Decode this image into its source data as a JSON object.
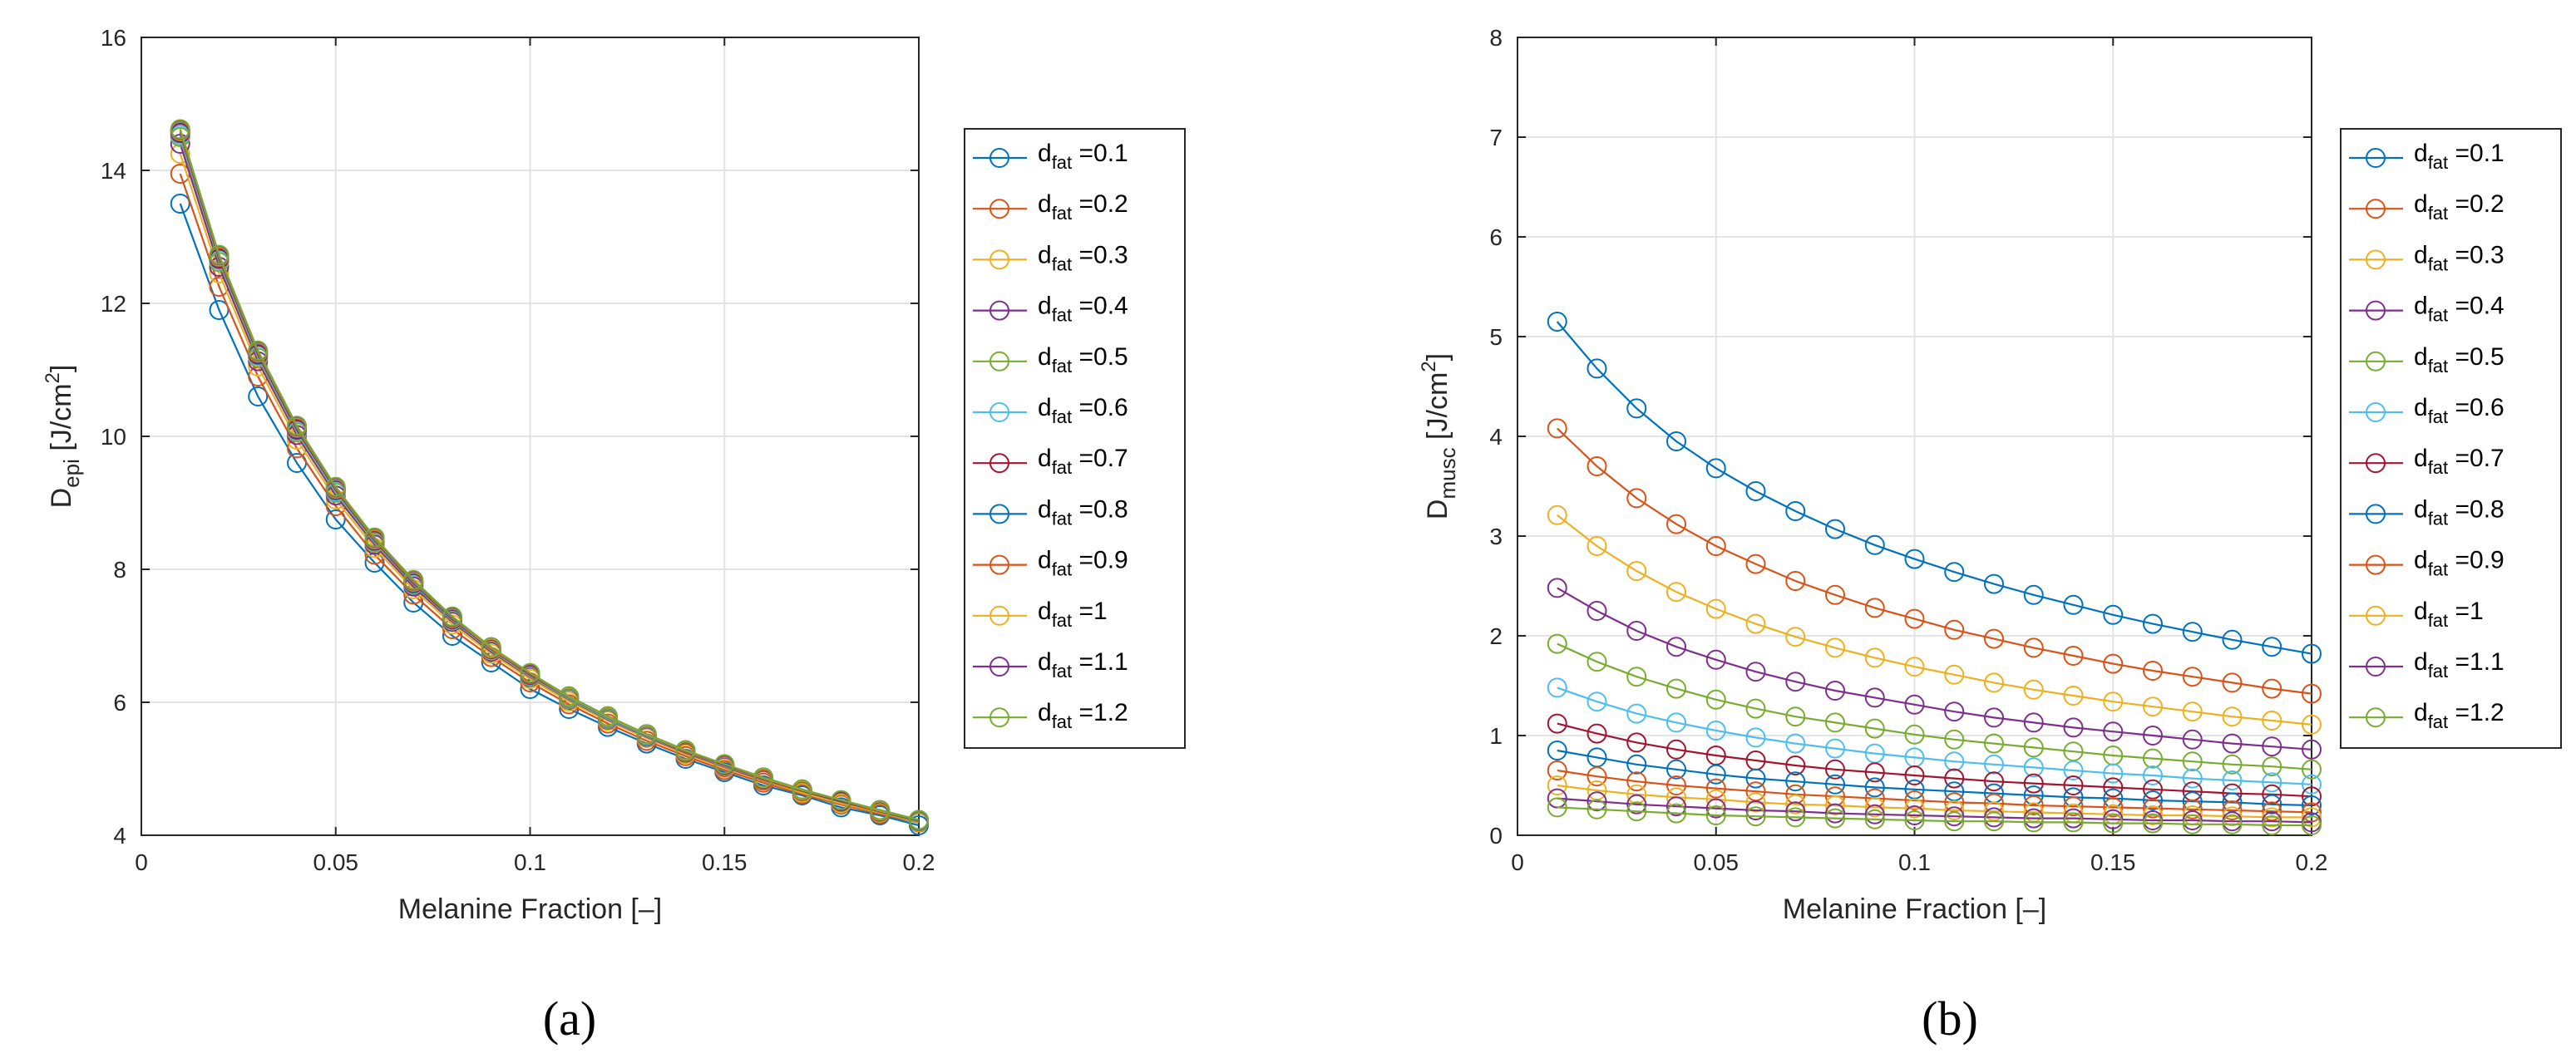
{
  "chart_data": [
    {
      "type": "line",
      "panel_label": "(a)",
      "xlabel": "Melanine Fraction [–]",
      "ylabel": "D",
      "ylabel_sub": "epi",
      "ylabel_unit": " [J/cm",
      "ylabel_sup": "2",
      "ylabel_close": "]",
      "xlim": [
        0,
        0.2
      ],
      "ylim": [
        4,
        16
      ],
      "xticks": [
        0,
        0.05,
        0.1,
        0.15,
        0.2
      ],
      "xtick_labels": [
        "0",
        "0.05",
        "0.1",
        "0.15",
        "0.2"
      ],
      "yticks": [
        4,
        6,
        8,
        10,
        12,
        14,
        16
      ],
      "ytick_labels": [
        "4",
        "6",
        "8",
        "10",
        "12",
        "14",
        "16"
      ],
      "grid": true,
      "legend_position": "right-outside",
      "x": [
        0.01,
        0.02,
        0.03,
        0.04,
        0.05,
        0.06,
        0.07,
        0.08,
        0.09,
        0.1,
        0.11,
        0.12,
        0.13,
        0.14,
        0.15,
        0.16,
        0.17,
        0.18,
        0.19,
        0.2
      ],
      "series": [
        {
          "name": "d",
          "sub": "fat",
          "suffix": " =0.1",
          "color": "#0072BD",
          "values": [
            13.5,
            11.9,
            10.6,
            9.6,
            8.75,
            8.1,
            7.5,
            7.0,
            6.6,
            6.2,
            5.9,
            5.63,
            5.38,
            5.15,
            4.95,
            4.75,
            4.6,
            4.42,
            4.3,
            4.15
          ]
        },
        {
          "name": "d",
          "sub": "fat",
          "suffix": " =0.2",
          "color": "#D95319",
          "values": [
            13.95,
            12.25,
            10.9,
            9.82,
            8.95,
            8.22,
            7.62,
            7.1,
            6.68,
            6.3,
            5.97,
            5.68,
            5.42,
            5.19,
            4.98,
            4.79,
            4.62,
            4.46,
            4.32,
            4.19
          ]
        },
        {
          "name": "d",
          "sub": "fat",
          "suffix": " =0.3",
          "color": "#EDB120",
          "values": [
            14.25,
            12.45,
            11.05,
            9.95,
            9.05,
            8.32,
            7.7,
            7.17,
            6.73,
            6.35,
            6.01,
            5.72,
            5.46,
            5.22,
            5.01,
            4.82,
            4.64,
            4.48,
            4.34,
            4.2
          ]
        },
        {
          "name": "d",
          "sub": "fat",
          "suffix": " =0.4",
          "color": "#7E2F8E",
          "values": [
            14.4,
            12.55,
            11.13,
            10.02,
            9.11,
            8.37,
            7.74,
            7.21,
            6.76,
            6.38,
            6.04,
            5.74,
            5.48,
            5.24,
            5.03,
            4.83,
            4.66,
            4.5,
            4.35,
            4.21
          ]
        },
        {
          "name": "d",
          "sub": "fat",
          "suffix": " =0.5",
          "color": "#77AC30",
          "values": [
            14.5,
            12.62,
            11.18,
            10.06,
            9.15,
            8.4,
            7.77,
            7.23,
            6.78,
            6.39,
            6.05,
            5.75,
            5.49,
            5.25,
            5.04,
            4.84,
            4.66,
            4.5,
            4.35,
            4.21
          ]
        },
        {
          "name": "d",
          "sub": "fat",
          "suffix": " =0.6",
          "color": "#4DBEEE",
          "values": [
            14.53,
            12.65,
            11.21,
            10.08,
            9.17,
            8.42,
            7.78,
            7.24,
            6.79,
            6.4,
            6.06,
            5.76,
            5.49,
            5.26,
            5.04,
            4.85,
            4.67,
            4.51,
            4.36,
            4.22
          ]
        },
        {
          "name": "d",
          "sub": "fat",
          "suffix": " =0.7",
          "color": "#A2142F",
          "values": [
            14.56,
            12.67,
            11.23,
            10.1,
            9.19,
            8.43,
            7.79,
            7.25,
            6.8,
            6.41,
            6.07,
            5.77,
            5.5,
            5.26,
            5.05,
            4.85,
            4.67,
            4.51,
            4.36,
            4.22
          ]
        },
        {
          "name": "d",
          "sub": "fat",
          "suffix": " =0.8",
          "color": "#0072BD",
          "values": [
            14.58,
            12.69,
            11.25,
            10.12,
            9.2,
            8.44,
            7.8,
            7.26,
            6.81,
            6.42,
            6.07,
            5.77,
            5.5,
            5.27,
            5.05,
            4.86,
            4.68,
            4.52,
            4.37,
            4.22
          ]
        },
        {
          "name": "d",
          "sub": "fat",
          "suffix": " =0.9",
          "color": "#D95319",
          "values": [
            14.59,
            12.7,
            11.26,
            10.13,
            9.21,
            8.45,
            7.81,
            7.27,
            6.81,
            6.42,
            6.08,
            5.78,
            5.51,
            5.27,
            5.05,
            4.86,
            4.68,
            4.52,
            4.37,
            4.23
          ]
        },
        {
          "name": "d",
          "sub": "fat",
          "suffix": " =1",
          "color": "#EDB120",
          "values": [
            14.6,
            12.71,
            11.27,
            10.14,
            9.22,
            8.46,
            7.82,
            7.27,
            6.82,
            6.43,
            6.08,
            5.78,
            5.51,
            5.27,
            5.06,
            4.86,
            4.68,
            4.52,
            4.37,
            4.23
          ]
        },
        {
          "name": "d",
          "sub": "fat",
          "suffix": " =1.1",
          "color": "#7E2F8E",
          "values": [
            14.61,
            12.72,
            11.28,
            10.15,
            9.23,
            8.47,
            7.83,
            7.28,
            6.83,
            6.43,
            6.09,
            5.79,
            5.52,
            5.28,
            5.06,
            4.87,
            4.69,
            4.52,
            4.38,
            4.23
          ]
        },
        {
          "name": "d",
          "sub": "fat",
          "suffix": " =1.2",
          "color": "#77AC30",
          "values": [
            14.62,
            12.73,
            11.29,
            10.16,
            9.24,
            8.48,
            7.84,
            7.29,
            6.83,
            6.44,
            6.09,
            5.79,
            5.52,
            5.28,
            5.07,
            4.87,
            4.69,
            4.53,
            4.38,
            4.23
          ]
        }
      ]
    },
    {
      "type": "line",
      "panel_label": "(b)",
      "xlabel": "Melanine Fraction [–]",
      "ylabel": "D",
      "ylabel_sub": "musc",
      "ylabel_unit": " [J/cm",
      "ylabel_sup": "2",
      "ylabel_close": "]",
      "xlim": [
        0,
        0.2
      ],
      "ylim": [
        0,
        8
      ],
      "xticks": [
        0,
        0.05,
        0.1,
        0.15,
        0.2
      ],
      "xtick_labels": [
        "0",
        "0.05",
        "0.1",
        "0.15",
        "0.2"
      ],
      "yticks": [
        0,
        1,
        2,
        3,
        4,
        5,
        6,
        7,
        8
      ],
      "ytick_labels": [
        "0",
        "1",
        "2",
        "3",
        "4",
        "5",
        "6",
        "7",
        "8"
      ],
      "grid": true,
      "legend_position": "right-outside",
      "x": [
        0.01,
        0.02,
        0.03,
        0.04,
        0.05,
        0.06,
        0.07,
        0.08,
        0.09,
        0.1,
        0.11,
        0.12,
        0.13,
        0.14,
        0.15,
        0.16,
        0.17,
        0.18,
        0.19,
        0.2
      ],
      "series": [
        {
          "name": "d",
          "sub": "fat",
          "suffix": " =0.1",
          "color": "#0072BD",
          "values": [
            5.15,
            4.68,
            4.28,
            3.95,
            3.68,
            3.45,
            3.25,
            3.07,
            2.91,
            2.77,
            2.64,
            2.52,
            2.41,
            2.31,
            2.21,
            2.12,
            2.04,
            1.96,
            1.89,
            1.82
          ]
        },
        {
          "name": "d",
          "sub": "fat",
          "suffix": " =0.2",
          "color": "#D95319",
          "values": [
            4.08,
            3.7,
            3.38,
            3.12,
            2.9,
            2.72,
            2.55,
            2.41,
            2.28,
            2.17,
            2.06,
            1.97,
            1.88,
            1.8,
            1.72,
            1.65,
            1.59,
            1.53,
            1.47,
            1.42
          ]
        },
        {
          "name": "d",
          "sub": "fat",
          "suffix": " =0.3",
          "color": "#EDB120",
          "values": [
            3.21,
            2.9,
            2.65,
            2.44,
            2.27,
            2.12,
            1.99,
            1.88,
            1.78,
            1.69,
            1.61,
            1.53,
            1.46,
            1.4,
            1.34,
            1.29,
            1.24,
            1.19,
            1.15,
            1.11
          ]
        },
        {
          "name": "d",
          "sub": "fat",
          "suffix": " =0.4",
          "color": "#7E2F8E",
          "values": [
            2.48,
            2.25,
            2.05,
            1.89,
            1.76,
            1.64,
            1.54,
            1.45,
            1.38,
            1.31,
            1.24,
            1.18,
            1.13,
            1.08,
            1.04,
            1.0,
            0.96,
            0.92,
            0.89,
            0.86
          ]
        },
        {
          "name": "d",
          "sub": "fat",
          "suffix": " =0.5",
          "color": "#77AC30",
          "values": [
            1.92,
            1.74,
            1.59,
            1.47,
            1.36,
            1.27,
            1.19,
            1.13,
            1.07,
            1.01,
            0.96,
            0.92,
            0.88,
            0.84,
            0.8,
            0.77,
            0.74,
            0.71,
            0.69,
            0.66
          ]
        },
        {
          "name": "d",
          "sub": "fat",
          "suffix": " =0.6",
          "color": "#4DBEEE",
          "values": [
            1.48,
            1.34,
            1.22,
            1.13,
            1.05,
            0.98,
            0.92,
            0.87,
            0.82,
            0.78,
            0.74,
            0.71,
            0.68,
            0.65,
            0.62,
            0.6,
            0.57,
            0.55,
            0.53,
            0.51
          ]
        },
        {
          "name": "d",
          "sub": "fat",
          "suffix": " =0.7",
          "color": "#A2142F",
          "values": [
            1.12,
            1.02,
            0.93,
            0.86,
            0.8,
            0.75,
            0.7,
            0.66,
            0.63,
            0.6,
            0.57,
            0.54,
            0.52,
            0.5,
            0.48,
            0.46,
            0.44,
            0.42,
            0.41,
            0.39
          ]
        },
        {
          "name": "d",
          "sub": "fat",
          "suffix": " =0.8",
          "color": "#0072BD",
          "values": [
            0.85,
            0.78,
            0.71,
            0.66,
            0.61,
            0.57,
            0.54,
            0.51,
            0.48,
            0.46,
            0.44,
            0.42,
            0.4,
            0.38,
            0.37,
            0.35,
            0.34,
            0.33,
            0.31,
            0.3
          ]
        },
        {
          "name": "d",
          "sub": "fat",
          "suffix": " =0.9",
          "color": "#D95319",
          "values": [
            0.65,
            0.59,
            0.54,
            0.5,
            0.47,
            0.44,
            0.41,
            0.39,
            0.37,
            0.35,
            0.33,
            0.32,
            0.3,
            0.29,
            0.28,
            0.27,
            0.26,
            0.25,
            0.24,
            0.23
          ]
        },
        {
          "name": "d",
          "sub": "fat",
          "suffix": " =1",
          "color": "#EDB120",
          "values": [
            0.5,
            0.45,
            0.41,
            0.38,
            0.36,
            0.33,
            0.31,
            0.3,
            0.28,
            0.27,
            0.25,
            0.24,
            0.23,
            0.22,
            0.21,
            0.2,
            0.2,
            0.19,
            0.18,
            0.18
          ]
        },
        {
          "name": "d",
          "sub": "fat",
          "suffix": " =1.1",
          "color": "#7E2F8E",
          "values": [
            0.37,
            0.34,
            0.31,
            0.29,
            0.27,
            0.25,
            0.24,
            0.22,
            0.21,
            0.2,
            0.19,
            0.18,
            0.17,
            0.17,
            0.16,
            0.15,
            0.15,
            0.14,
            0.14,
            0.13
          ]
        },
        {
          "name": "d",
          "sub": "fat",
          "suffix": " =1.2",
          "color": "#77AC30",
          "values": [
            0.28,
            0.26,
            0.24,
            0.22,
            0.2,
            0.19,
            0.18,
            0.17,
            0.16,
            0.15,
            0.14,
            0.14,
            0.13,
            0.13,
            0.12,
            0.12,
            0.11,
            0.11,
            0.1,
            0.1
          ]
        }
      ]
    }
  ]
}
